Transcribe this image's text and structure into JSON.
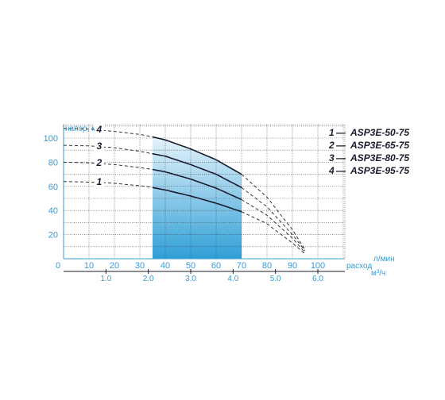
{
  "chart_data": {
    "type": "line",
    "title": "",
    "ylabel": "напор, м",
    "xlabel": "расход",
    "x_unit_top": "л/мин",
    "x_unit_bottom": "м³/ч",
    "xlim": [
      0,
      100
    ],
    "ylim": [
      0,
      110
    ],
    "x_ticks": [
      "0",
      "10",
      "20",
      "30",
      "40",
      "50",
      "60",
      "70",
      "80",
      "90",
      "100"
    ],
    "y_ticks": [
      "20",
      "40",
      "60",
      "80",
      "100"
    ],
    "x2_ticks": [
      {
        "label": "1.0",
        "value": 1.0
      },
      {
        "label": "2.0",
        "value": 2.0
      },
      {
        "label": "3.0",
        "value": 3.0
      },
      {
        "label": "4.0",
        "value": 4.0
      },
      {
        "label": "5.0",
        "value": 5.0
      },
      {
        "label": "6.0",
        "value": 6.0
      }
    ],
    "grid": true,
    "working_range": [
      35,
      70
    ],
    "legend_position": "right",
    "legend": [
      {
        "num": "1",
        "sep": "—",
        "model": "ASP3E-50-75"
      },
      {
        "num": "2",
        "sep": "—",
        "model": "ASP3E-65-75"
      },
      {
        "num": "3",
        "sep": "—",
        "model": "ASP3E-80-75"
      },
      {
        "num": "4",
        "sep": "—",
        "model": "ASP3E-95-75"
      }
    ],
    "series": [
      {
        "name": "1",
        "x": [
          0,
          10,
          20,
          30,
          35,
          40,
          50,
          60,
          70,
          80,
          90,
          95
        ],
        "y": [
          64,
          63.5,
          62.5,
          60.5,
          59,
          57,
          52,
          46,
          39,
          29,
          13,
          4
        ]
      },
      {
        "name": "2",
        "x": [
          0,
          10,
          20,
          30,
          35,
          40,
          50,
          60,
          70,
          80,
          90,
          95
        ],
        "y": [
          80,
          79.5,
          78,
          75.5,
          74,
          72,
          66,
          58.5,
          49,
          36,
          17,
          5
        ]
      },
      {
        "name": "3",
        "x": [
          0,
          10,
          20,
          30,
          35,
          40,
          50,
          60,
          70,
          80,
          90,
          96
        ],
        "y": [
          94,
          93.5,
          92,
          89,
          87,
          85,
          78,
          70,
          59,
          43,
          20,
          4
        ]
      },
      {
        "name": "4",
        "x": [
          0,
          10,
          20,
          30,
          35,
          40,
          50,
          60,
          70,
          80,
          90,
          96
        ],
        "y": [
          108,
          107.5,
          105.5,
          103,
          101,
          98.5,
          91,
          82,
          70,
          51,
          24,
          4
        ]
      }
    ]
  }
}
